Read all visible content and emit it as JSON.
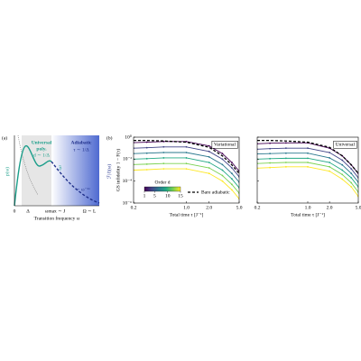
{
  "panel_a": {
    "label": "(a)",
    "ylabel": "p(ω)",
    "right_label": "ℱ|ℓ|(ω)",
    "xlabel": "Transition frequency ω",
    "xticks": [
      "0",
      "Δ",
      "ωmax ∼ J",
      "Ω ∼ L"
    ],
    "universal": [
      "Universal",
      "poly.",
      "d ∼ 1/Δ"
    ],
    "adiabatic": [
      "Adiabatic",
      "τ ∼ 1/Δ"
    ],
    "slope_low": "ω³",
    "slope_high": "∼ ω⁻²ᵅ"
  },
  "panel_b": {
    "label": "(b)"
  },
  "chart_data": [
    {
      "type": "line",
      "title": "Variational",
      "xlabel": "Total time τ [J⁻¹]",
      "ylabel": "GS infidelity 1 − F(τ)",
      "log_x": true,
      "log_y": true,
      "ytick_labels": true,
      "x": [
        0.2,
        0.3,
        0.5,
        1.0,
        2.0,
        3.0,
        4.0,
        5.0
      ],
      "xlim": [
        0.2,
        5.0
      ],
      "xticks": [
        0.2,
        {
          "value": 1.0,
          "label": "1.0"
        },
        {
          "value": 2.0,
          "label": "2.0"
        },
        {
          "value": 5.0,
          "label": "5.0"
        }
      ],
      "ylim": [
        1e-06,
        1
      ],
      "yticks": [
        {
          "value": 1,
          "label": "10⁰"
        },
        {
          "value": 0.01,
          "label": "10⁻²"
        },
        {
          "value": 0.0001,
          "label": "10⁻⁴"
        },
        {
          "value": 1e-06,
          "label": "10⁻⁶"
        }
      ],
      "series": [
        {
          "color": "#440154",
          "values": [
            0.32,
            0.35,
            0.4,
            0.4,
            0.16,
            0.032,
            0.005,
            0.0008
          ]
        },
        {
          "color": "#414487",
          "values": [
            0.1,
            0.11,
            0.13,
            0.13,
            0.05,
            0.01,
            0.0016,
            0.00025
          ]
        },
        {
          "color": "#2a788e",
          "values": [
            0.032,
            0.035,
            0.04,
            0.04,
            0.016,
            0.0032,
            0.0005,
            8e-05
          ]
        },
        {
          "color": "#22a884",
          "values": [
            0.01,
            0.011,
            0.013,
            0.013,
            0.005,
            0.001,
            0.00016,
            2.5e-05
          ]
        },
        {
          "color": "#7ad151",
          "values": [
            0.0032,
            0.0035,
            0.004,
            0.004,
            0.0016,
            0.00032,
            5e-05,
            8e-06
          ]
        },
        {
          "color": "#fde725",
          "values": [
            0.001,
            0.0011,
            0.0013,
            0.0013,
            0.0005,
            0.0001,
            1.6e-05,
            2.5e-06
          ]
        },
        {
          "name": "Bare adiabatic",
          "color": "#000000",
          "dashed": true,
          "values": [
            0.5,
            0.5,
            0.45,
            0.35,
            0.12,
            0.02,
            0.003,
            0.0005
          ]
        }
      ],
      "colorbar": {
        "label": "Order d",
        "lim": [
          1,
          15
        ],
        "ticks": [
          1,
          5,
          10,
          15
        ],
        "colors": [
          "#440154",
          "#414487",
          "#2a788e",
          "#22a884",
          "#7ad151",
          "#fde725"
        ]
      }
    },
    {
      "type": "line",
      "title": "Universal",
      "xlabel": "Total time τ [J⁻¹]",
      "log_x": true,
      "log_y": true,
      "ytick_labels": false,
      "x": [
        0.2,
        0.3,
        0.5,
        1.0,
        2.0,
        3.0,
        4.0,
        5.0
      ],
      "xlim": [
        0.2,
        5.0
      ],
      "xticks": [
        0.2,
        {
          "value": 1.0,
          "label": "1.0"
        },
        {
          "value": 2.0,
          "label": "2.0"
        },
        {
          "value": 5.0,
          "label": "5.0"
        }
      ],
      "ylim": [
        1e-06,
        1
      ],
      "yticks": [
        1,
        0.01,
        0.0001,
        1e-06
      ],
      "series": [
        {
          "color": "#440154",
          "values": [
            0.25,
            0.28,
            0.3,
            0.3,
            0.1,
            0.02,
            0.003,
            0.0005
          ]
        },
        {
          "color": "#414487",
          "values": [
            0.08,
            0.09,
            0.1,
            0.1,
            0.04,
            0.008,
            0.0013,
            0.0002
          ]
        },
        {
          "color": "#2a788e",
          "values": [
            0.03,
            0.032,
            0.035,
            0.035,
            0.013,
            0.003,
            0.0005,
            8e-05
          ]
        },
        {
          "color": "#22a884",
          "values": [
            0.01,
            0.011,
            0.012,
            0.012,
            0.005,
            0.001,
            0.0002,
            3e-05
          ]
        },
        {
          "color": "#7ad151",
          "values": [
            0.004,
            0.0045,
            0.005,
            0.005,
            0.002,
            0.0004,
            7e-05,
            1e-05
          ]
        },
        {
          "color": "#fde725",
          "values": [
            0.0015,
            0.0017,
            0.002,
            0.002,
            0.0008,
            0.00015,
            3e-05,
            4e-06
          ]
        },
        {
          "color": "#000000",
          "dashed": true,
          "values": [
            0.5,
            0.5,
            0.45,
            0.35,
            0.12,
            0.02,
            0.003,
            0.0005
          ]
        }
      ]
    }
  ]
}
